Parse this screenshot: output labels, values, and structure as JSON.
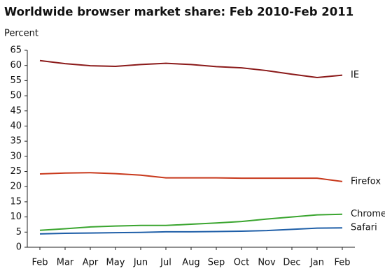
{
  "chart_data": {
    "type": "line",
    "title": "Worldwide browser market share: Feb 2010-Feb 2011",
    "y_axis_label": "Percent",
    "categories": [
      "Feb",
      "Mar",
      "Apr",
      "May",
      "Jun",
      "Jul",
      "Aug",
      "Sep",
      "Oct",
      "Nov",
      "Dec",
      "Jan",
      "Feb"
    ],
    "series": [
      {
        "name": "IE",
        "color": "#8b1a1a",
        "values": [
          61.6,
          60.6,
          59.9,
          59.7,
          60.3,
          60.7,
          60.3,
          59.6,
          59.2,
          58.3,
          57.1,
          56.0,
          56.8
        ]
      },
      {
        "name": "Firefox",
        "color": "#c8391c",
        "values": [
          24.2,
          24.5,
          24.6,
          24.3,
          23.8,
          22.9,
          22.9,
          22.9,
          22.8,
          22.8,
          22.8,
          22.8,
          21.7
        ]
      },
      {
        "name": "Chrome",
        "color": "#3aa52f",
        "values": [
          5.6,
          6.1,
          6.7,
          7.0,
          7.2,
          7.2,
          7.6,
          8.0,
          8.5,
          9.3,
          10.0,
          10.7,
          10.9
        ]
      },
      {
        "name": "Safari",
        "color": "#1f5fa8",
        "values": [
          4.4,
          4.6,
          4.7,
          4.8,
          4.9,
          5.1,
          5.1,
          5.2,
          5.3,
          5.5,
          5.9,
          6.3,
          6.4
        ]
      }
    ],
    "ylim": [
      0,
      65
    ],
    "yticks": [
      0,
      5,
      10,
      15,
      20,
      25,
      30,
      35,
      40,
      45,
      50,
      55,
      60,
      65
    ],
    "grid": false
  }
}
